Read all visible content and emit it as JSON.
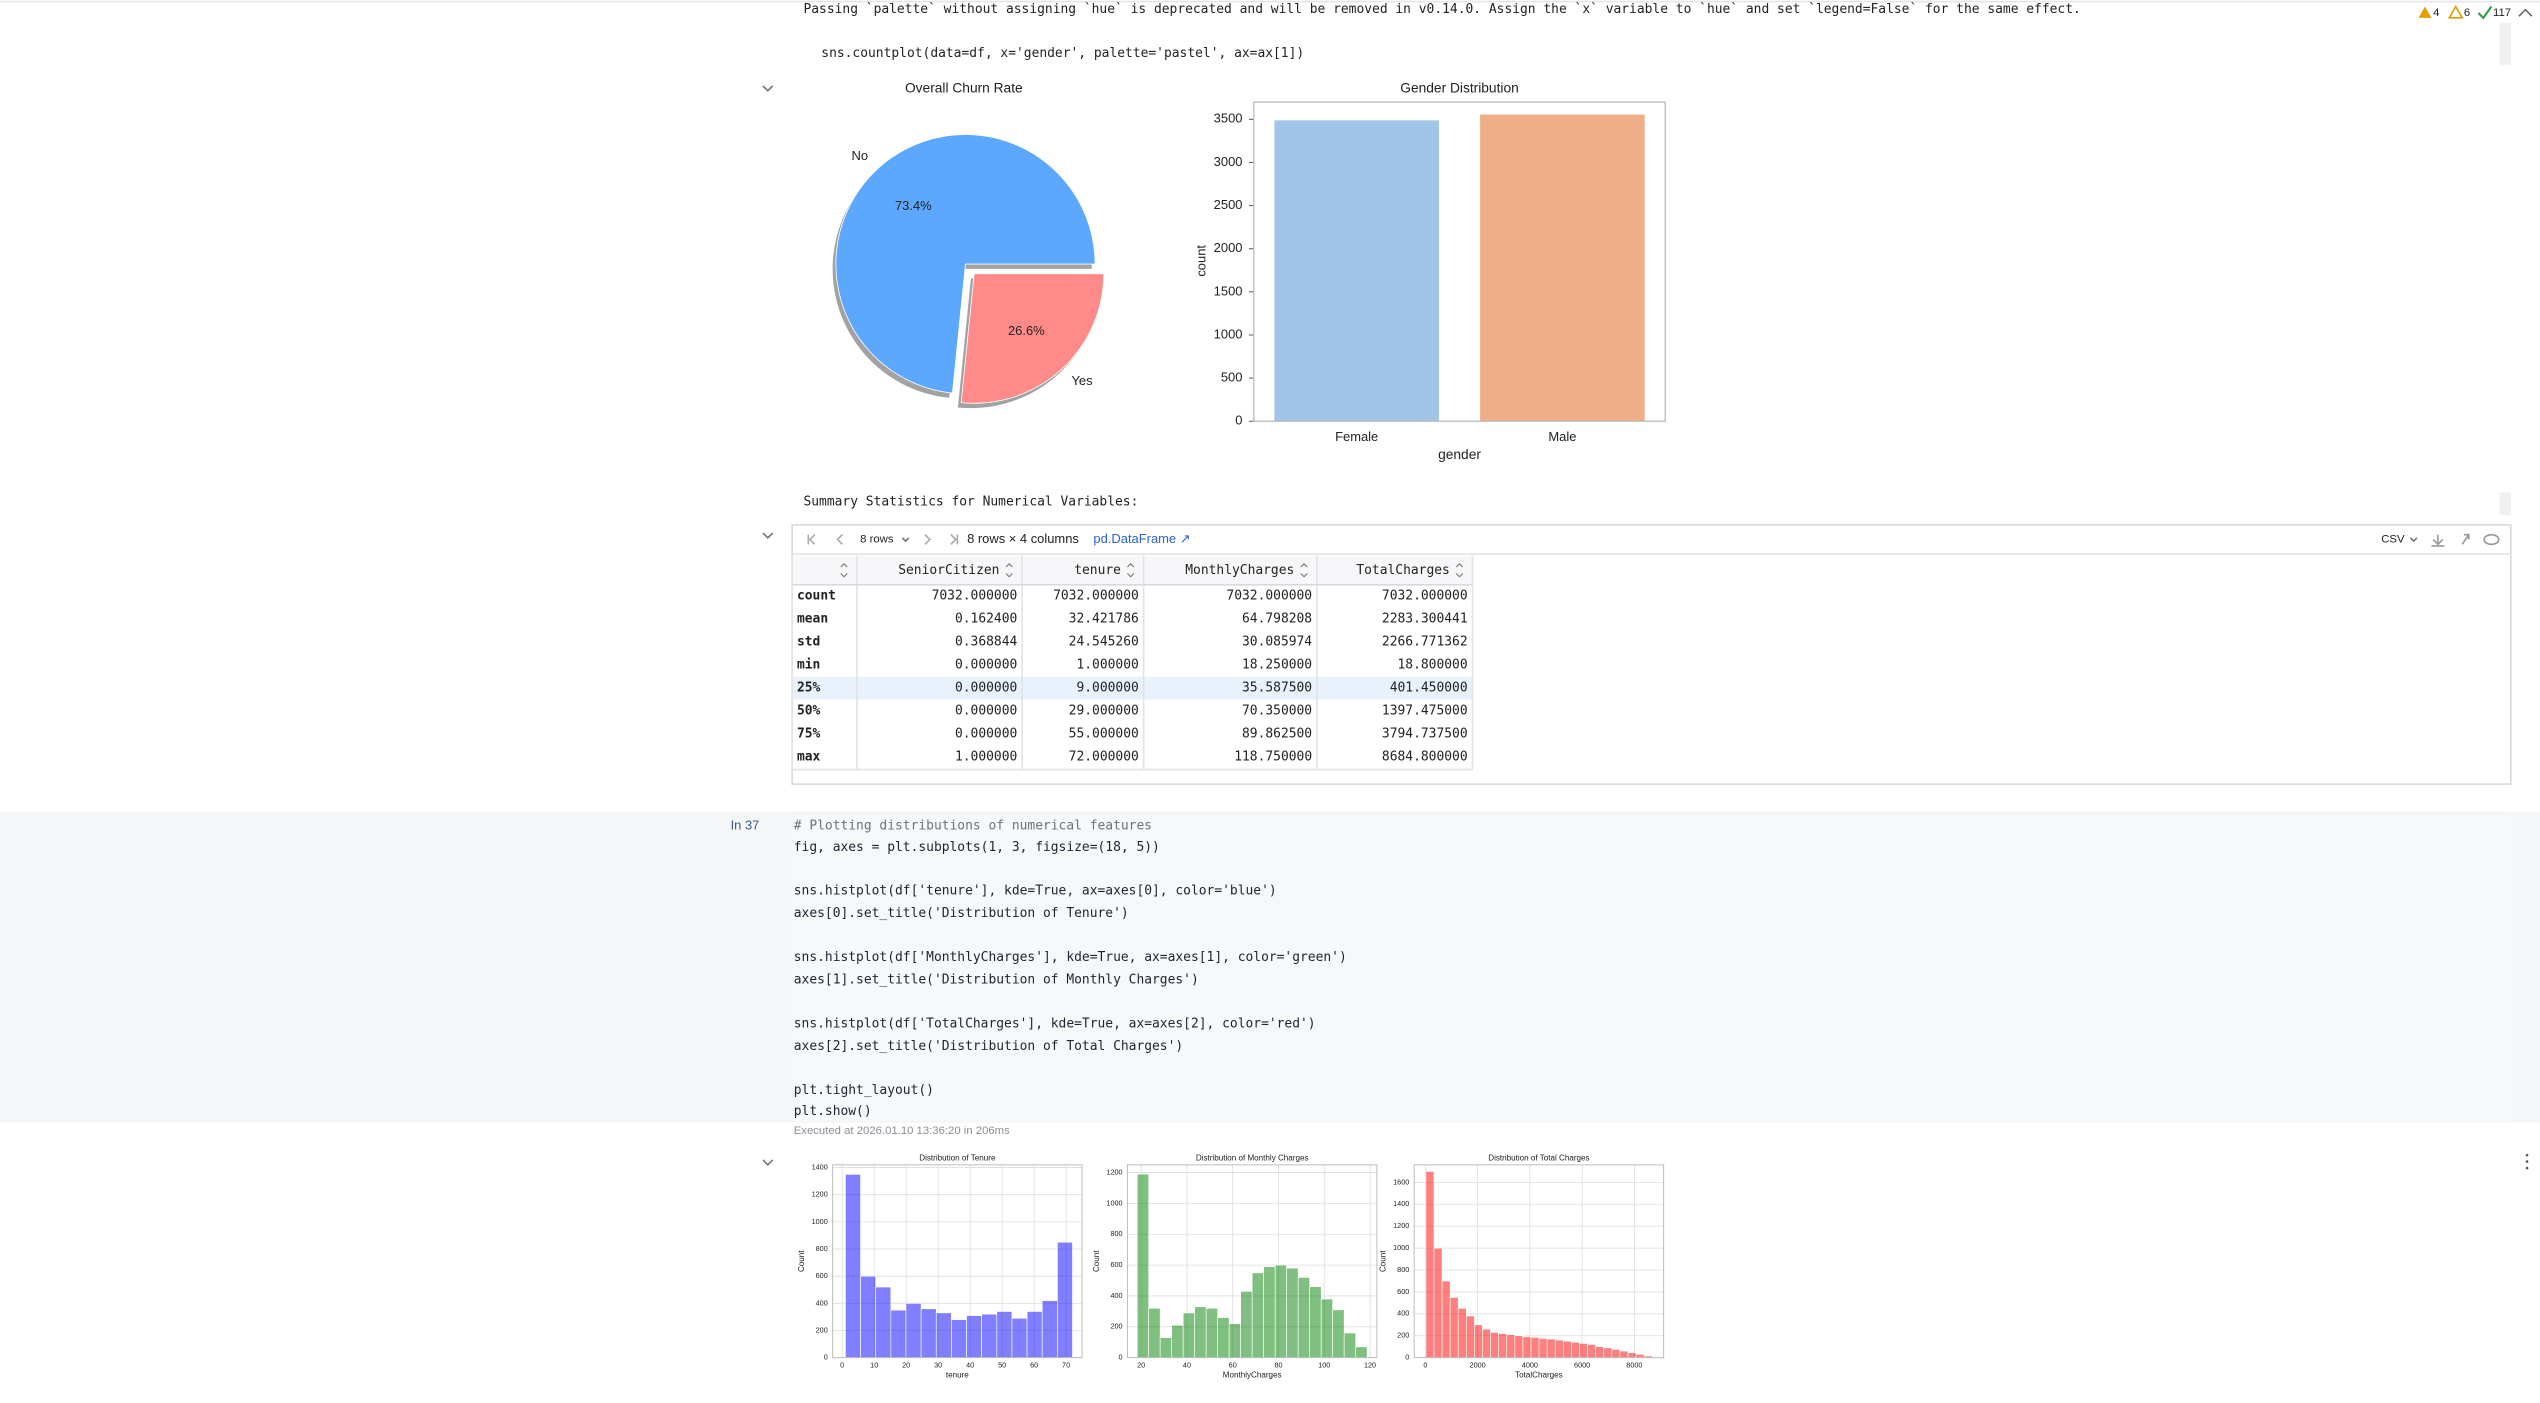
{
  "status": {
    "errors": "4",
    "warnings": "6",
    "ok": "117"
  },
  "output_warning": "Passing `palette` without assigning `hue` is deprecated and will be removed in v0.14.0. Assign the `x` variable to `hue` and set `legend=False` for the same effect.",
  "output_code": "sns.countplot(data=df, x='gender', palette='pastel', ax=ax[1])",
  "summary_title": "Summary Statistics for Numerical Variables:",
  "table": {
    "rows_menu": "8 rows",
    "shape": "8 rows × 4 columns",
    "type_link": "pd.DataFrame ↗",
    "export": "CSV",
    "highlighted_row": 4,
    "columns": [
      "SeniorCitizen",
      "tenure",
      "MonthlyCharges",
      "TotalCharges"
    ],
    "rows": [
      [
        "count",
        "7032.000000",
        "7032.000000",
        "7032.000000",
        "7032.000000"
      ],
      [
        "mean",
        "0.162400",
        "32.421786",
        "64.798208",
        "2283.300441"
      ],
      [
        "std",
        "0.368844",
        "24.545260",
        "30.085974",
        "2266.771362"
      ],
      [
        "min",
        "0.000000",
        "1.000000",
        "18.250000",
        "18.800000"
      ],
      [
        "25%",
        "0.000000",
        "9.000000",
        "35.587500",
        "401.450000"
      ],
      [
        "50%",
        "0.000000",
        "29.000000",
        "70.350000",
        "1397.475000"
      ],
      [
        "75%",
        "0.000000",
        "55.000000",
        "89.862500",
        "3794.737500"
      ],
      [
        "max",
        "1.000000",
        "72.000000",
        "118.750000",
        "8684.800000"
      ]
    ]
  },
  "cell": {
    "prompt": "In 37",
    "code": [
      "# Plotting distributions of numerical features",
      "fig, axes = plt.subplots(1, 3, figsize=(18, 5))",
      "sns.histplot(df['tenure'], kde=True, ax=axes[0], color='blue')",
      "axes[0].set_title('Distribution of Tenure')",
      "sns.histplot(df['MonthlyCharges'], kde=True, ax=axes[1], color='green')",
      "axes[1].set_title('Distribution of Monthly Charges')",
      "sns.histplot(df['TotalCharges'], kde=True, ax=axes[2], color='red')",
      "axes[2].set_title('Distribution of Total Charges')",
      "plt.tight_layout()",
      "plt.show()"
    ],
    "executed": "Executed at 2026.01.10 13:36:20 in 206ms"
  },
  "chart_data": [
    {
      "type": "pie",
      "title": "Overall Churn Rate",
      "categories": [
        "No",
        "Yes"
      ],
      "values": [
        73.4,
        26.6
      ],
      "value_labels": [
        "73.4%",
        "26.6%"
      ],
      "colors": [
        "#5ca8ff",
        "#ff8a8a"
      ],
      "explode": [
        0,
        0.1
      ],
      "shadow": true
    },
    {
      "type": "bar",
      "title": "Gender Distribution",
      "categories": [
        "Female",
        "Male"
      ],
      "values": [
        3488,
        3555
      ],
      "colors": [
        "#a1c4e9",
        "#efae87"
      ],
      "xlabel": "gender",
      "ylabel": "count",
      "ylim": [
        0,
        3700
      ],
      "yticks": [
        0,
        500,
        1000,
        1500,
        2000,
        2500,
        3000,
        3500
      ]
    },
    {
      "type": "histogram",
      "title": "Distribution of Tenure",
      "xlabel": "tenure",
      "ylabel": "Count",
      "color": "#0000ff",
      "bins": [
        1,
        5.73,
        10.47,
        15.2,
        19.93,
        24.67,
        29.4,
        34.13,
        38.87,
        43.6,
        48.33,
        53.07,
        57.8,
        62.53,
        67.27,
        72
      ],
      "counts": [
        1350,
        600,
        520,
        350,
        400,
        360,
        330,
        280,
        310,
        320,
        340,
        290,
        340,
        420,
        850
      ],
      "xlim": [
        -3,
        75
      ],
      "ylim": [
        0,
        1420
      ],
      "xticks": [
        0,
        10,
        20,
        30,
        40,
        50,
        60,
        70
      ],
      "yticks": [
        0,
        200,
        400,
        600,
        800,
        1000,
        1200,
        1400
      ],
      "grid": true
    },
    {
      "type": "histogram",
      "title": "Distribution of Monthly Charges",
      "xlabel": "MonthlyCharges",
      "ylabel": "Count",
      "color": "#008000",
      "bins": [
        18.25,
        23.28,
        28.3,
        33.33,
        38.35,
        43.38,
        48.4,
        53.43,
        58.45,
        63.48,
        68.5,
        73.53,
        78.55,
        83.58,
        88.6,
        93.63,
        98.65,
        103.68,
        108.7,
        113.73,
        118.75
      ],
      "counts": [
        1190,
        320,
        130,
        210,
        290,
        330,
        320,
        260,
        220,
        430,
        550,
        590,
        600,
        580,
        520,
        460,
        380,
        310,
        160,
        70
      ],
      "xlim": [
        14,
        123
      ],
      "ylim": [
        0,
        1250
      ],
      "xticks": [
        20,
        40,
        60,
        80,
        100,
        120
      ],
      "yticks": [
        0,
        200,
        400,
        600,
        800,
        1000,
        1200
      ],
      "grid": true
    },
    {
      "type": "histogram",
      "title": "Distribution of Total Charges",
      "xlabel": "TotalCharges",
      "ylabel": "Count",
      "color": "#ff0000",
      "bins": [
        18.8,
        328.3,
        637.8,
        947.3,
        1256.8,
        1566.3,
        1875.8,
        2185.3,
        2494.8,
        2804.3,
        3113.8,
        3423.3,
        3732.8,
        4042.3,
        4351.8,
        4661.3,
        4970.8,
        5280.3,
        5589.8,
        5899.3,
        6208.8,
        6518.3,
        6827.8,
        7137.3,
        7446.8,
        7756.3,
        8065.8,
        8375.3,
        8684.8
      ],
      "counts": [
        1700,
        1000,
        700,
        550,
        450,
        380,
        300,
        260,
        230,
        220,
        210,
        200,
        190,
        185,
        175,
        170,
        160,
        150,
        140,
        130,
        120,
        100,
        90,
        75,
        60,
        45,
        30,
        15
      ],
      "xlim": [
        -430,
        9120
      ],
      "ylim": [
        0,
        1760
      ],
      "xticks": [
        0,
        2000,
        4000,
        6000,
        8000
      ],
      "yticks": [
        0,
        200,
        400,
        600,
        800,
        1000,
        1200,
        1400,
        1600
      ],
      "grid": true
    }
  ]
}
